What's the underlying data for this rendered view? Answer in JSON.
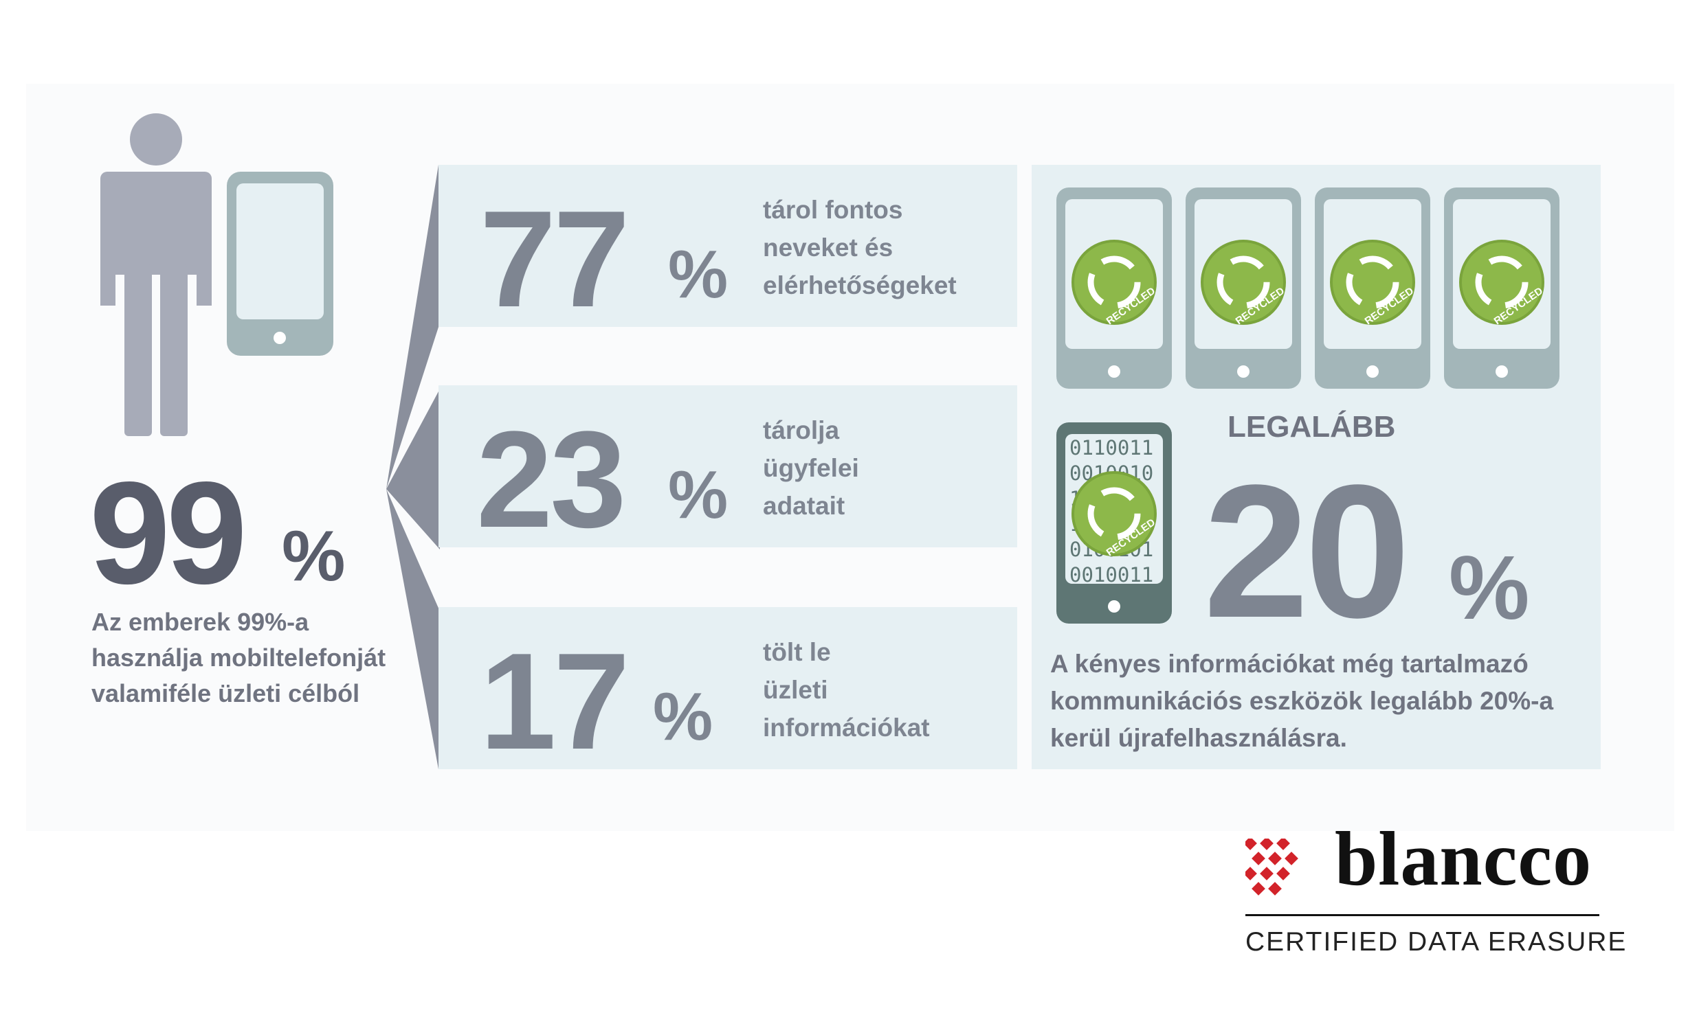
{
  "left": {
    "big_number": "99",
    "percent_sign": "%",
    "text": "Az emberek 99%-a használja mobiltelefonját valamiféle üzleti célból"
  },
  "stats": [
    {
      "number": "77",
      "percent_sign": "%",
      "line1": "tárol fontos",
      "line2": "neveket és",
      "line3": "elérhetőségeket"
    },
    {
      "number": "23",
      "percent_sign": "%",
      "line1": "tárolja",
      "line2": "ügyfelei",
      "line3": "adatait"
    },
    {
      "number": "17",
      "percent_sign": "%",
      "line1": "tölt le",
      "line2": "üzleti",
      "line3": "információkat"
    }
  ],
  "right": {
    "recycle_badge_text": "RECYCLED",
    "binary_rows": [
      "0110011",
      "0010010",
      "1001101",
      "1001011",
      "0100101",
      "0010011"
    ],
    "legalabb": "LEGALÁBB",
    "big_number": "20",
    "percent_sign": "%",
    "text": "A kényes információkat még tartalmazó kommunikációs eszközök legalább 20%-a kerül újrafelhasználásra."
  },
  "logo": {
    "name": "blancco",
    "tagline": "CERTIFIED DATA ERASURE"
  },
  "colors": {
    "dark_gray": "#595d6b",
    "mid_gray": "#7e8591",
    "panel_blue": "#e6f0f3",
    "phone_gray": "#a3b6b9",
    "recycle_green": "#8db84a",
    "logo_red": "#d2232a"
  },
  "icons": [
    "person-icon",
    "smartphone-icon",
    "recycle-badge-icon",
    "blancco-logo-mark"
  ]
}
